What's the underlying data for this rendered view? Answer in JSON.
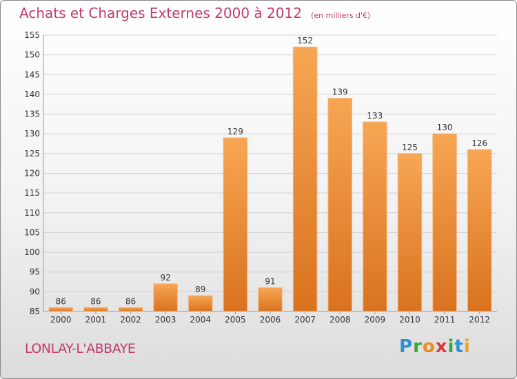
{
  "title": "Achats et Charges Externes 2000 à 2012",
  "subtitle": "(en milliers d'€)",
  "place": "LONLAY-L'ABBAYE",
  "logo": {
    "letters": [
      "P",
      "r",
      "o",
      "x",
      "i",
      "t",
      "i"
    ],
    "colors": [
      "#2f8ed8",
      "#3aa63a",
      "#f08a1c",
      "#d63a3a",
      "#3aa63a",
      "#2f8ed8",
      "#f0a020"
    ]
  },
  "colors": {
    "bar_top": "#f7a653",
    "bar_bottom": "#d9721f",
    "title": "#c23a6e"
  },
  "chart_data": {
    "type": "bar",
    "categories": [
      "2000",
      "2001",
      "2002",
      "2003",
      "2004",
      "2005",
      "2006",
      "2007",
      "2008",
      "2009",
      "2010",
      "2011",
      "2012"
    ],
    "values": [
      86,
      86,
      86,
      92,
      89,
      129,
      91,
      152,
      139,
      133,
      125,
      130,
      126
    ],
    "ylim": [
      85,
      155
    ],
    "yticks": [
      85,
      90,
      95,
      100,
      105,
      110,
      115,
      120,
      125,
      130,
      135,
      140,
      145,
      150,
      155
    ],
    "grid": true
  }
}
